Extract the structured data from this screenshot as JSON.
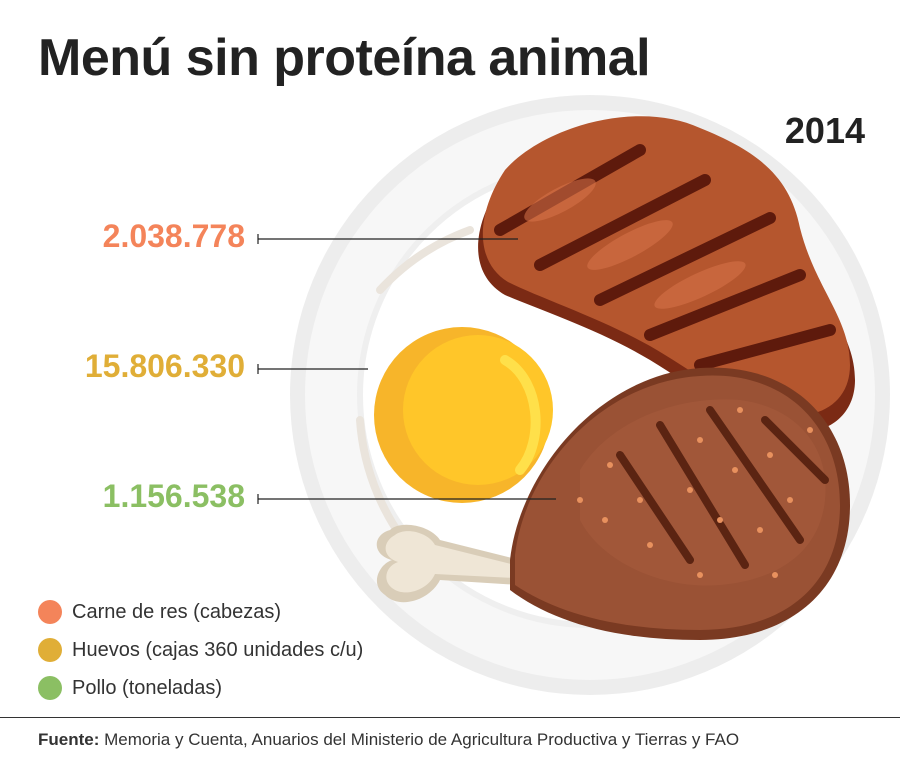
{
  "header": {
    "title": "Menú sin proteína animal",
    "year": "2014"
  },
  "chart_data": {
    "type": "table",
    "series": [
      {
        "name": "Carne de res (cabezas)",
        "value": 2038778,
        "label": "2.038.778",
        "color": "#F4845A"
      },
      {
        "name": "Huevos (cajas 360 unidades c/u)",
        "value": 15806330,
        "label": "15.806.330",
        "color": "#E0AE37"
      },
      {
        "name": "Pollo (toneladas)",
        "value": 1156538,
        "label": "1.156.538",
        "color": "#8BBF63"
      }
    ]
  },
  "footer": {
    "source_label": "Fuente:",
    "source_text": "Memoria y Cuenta, Anuarios del Ministerio de Agricultura Productiva y Tierras y FAO"
  },
  "colors": {
    "plate": "#F2F2F2",
    "plate_rim": "#E6E6E6",
    "steak": "#B5562E",
    "egg_yolk": "#F7B52A",
    "chicken": "#8E4B2E",
    "bone": "#E8DCC8"
  }
}
